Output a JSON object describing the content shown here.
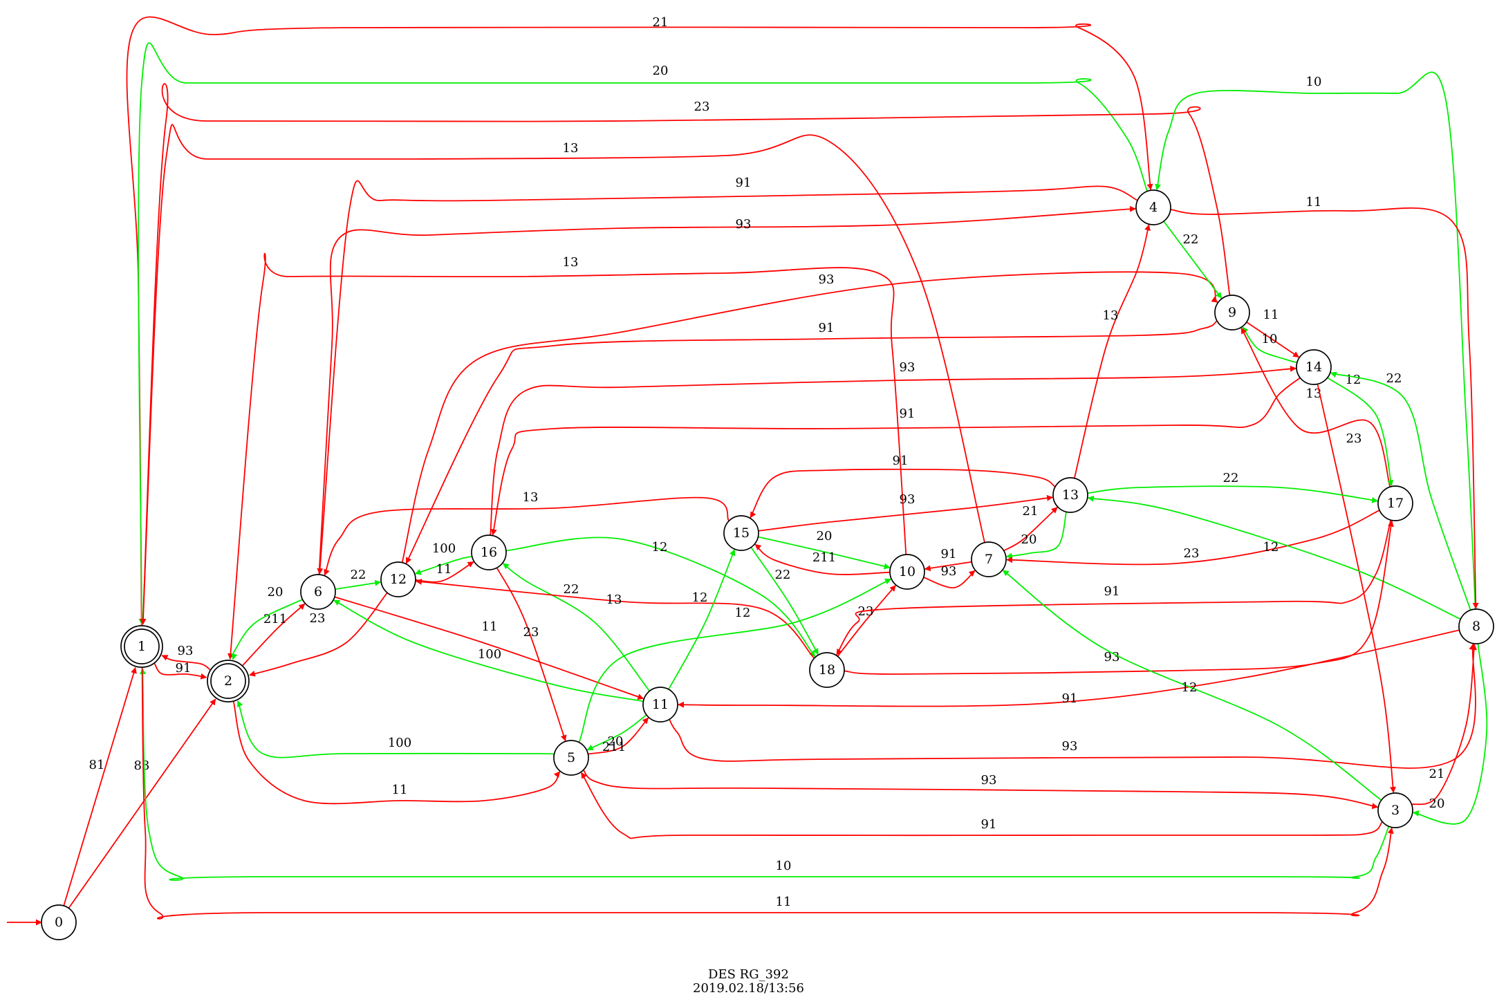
{
  "colors": {
    "red": "#ff0000",
    "green": "#00ee00"
  },
  "caption": {
    "line1": "DES RG_392",
    "line2": "2019.02.18/13:56"
  },
  "diagram": {
    "initial_state": "0",
    "final_states": [
      "1",
      "2"
    ],
    "states": [
      "0",
      "1",
      "2",
      "3",
      "4",
      "5",
      "6",
      "7",
      "8",
      "9",
      "10",
      "11",
      "12",
      "13",
      "14",
      "15",
      "16",
      "17",
      "18"
    ],
    "edges": [
      {
        "from": "0",
        "to": "1",
        "label": "81",
        "color": "red"
      },
      {
        "from": "0",
        "to": "2",
        "label": "83",
        "color": "red"
      },
      {
        "from": "1",
        "to": "2",
        "label": "91",
        "color": "red"
      },
      {
        "from": "2",
        "to": "1",
        "label": "93",
        "color": "red"
      },
      {
        "from": "1",
        "to": "4",
        "label": "21",
        "color": "red"
      },
      {
        "from": "4",
        "to": "1",
        "label": "20",
        "color": "green"
      },
      {
        "from": "9",
        "to": "1",
        "label": "23",
        "color": "red"
      },
      {
        "from": "7",
        "to": "1",
        "label": "13",
        "color": "red"
      },
      {
        "from": "4",
        "to": "6",
        "label": "91",
        "color": "red"
      },
      {
        "from": "6",
        "to": "4",
        "label": "93",
        "color": "red"
      },
      {
        "from": "10",
        "to": "2",
        "label": "13",
        "color": "red"
      },
      {
        "from": "12",
        "to": "9",
        "label": "93",
        "color": "red"
      },
      {
        "from": "9",
        "to": "12",
        "label": "91",
        "color": "red"
      },
      {
        "from": "16",
        "to": "14",
        "label": "93",
        "color": "red"
      },
      {
        "from": "14",
        "to": "16",
        "label": "91",
        "color": "red"
      },
      {
        "from": "8",
        "to": "4",
        "label": "10",
        "color": "green"
      },
      {
        "from": "4",
        "to": "8",
        "label": "11",
        "color": "red"
      },
      {
        "from": "4",
        "to": "9",
        "label": "22",
        "color": "green"
      },
      {
        "from": "9",
        "to": "14",
        "label": "11",
        "color": "red"
      },
      {
        "from": "14",
        "to": "9",
        "label": "10",
        "color": "green"
      },
      {
        "from": "17",
        "to": "9",
        "label": "13",
        "color": "red"
      },
      {
        "from": "14",
        "to": "17",
        "label": "12",
        "color": "green"
      },
      {
        "from": "8",
        "to": "14",
        "label": "22",
        "color": "green"
      },
      {
        "from": "14",
        "to": "3",
        "label": "23",
        "color": "red"
      },
      {
        "from": "13",
        "to": "4",
        "label": "13",
        "color": "red"
      },
      {
        "from": "13",
        "to": "15",
        "label": "91",
        "color": "red"
      },
      {
        "from": "15",
        "to": "13",
        "label": "93",
        "color": "red"
      },
      {
        "from": "13",
        "to": "17",
        "label": "22",
        "color": "green"
      },
      {
        "from": "7",
        "to": "13",
        "label": "21",
        "color": "red"
      },
      {
        "from": "13",
        "to": "7",
        "label": "20",
        "color": "green"
      },
      {
        "from": "17",
        "to": "7",
        "label": "23",
        "color": "red"
      },
      {
        "from": "8",
        "to": "13",
        "label": "12",
        "color": "green"
      },
      {
        "from": "15",
        "to": "6",
        "label": "13",
        "color": "red"
      },
      {
        "from": "15",
        "to": "10",
        "label": "20",
        "color": "green"
      },
      {
        "from": "10",
        "to": "15",
        "label": "211",
        "color": "red"
      },
      {
        "from": "15",
        "to": "18",
        "label": "22",
        "color": "green"
      },
      {
        "from": "7",
        "to": "10",
        "label": "91",
        "color": "red"
      },
      {
        "from": "10",
        "to": "7",
        "label": "93",
        "color": "red"
      },
      {
        "from": "18",
        "to": "10",
        "label": "23",
        "color": "red"
      },
      {
        "from": "17",
        "to": "18",
        "label": "91",
        "color": "red"
      },
      {
        "from": "18",
        "to": "17",
        "label": "93",
        "color": "red"
      },
      {
        "from": "16",
        "to": "12",
        "label": "100",
        "color": "green"
      },
      {
        "from": "12",
        "to": "16",
        "label": "11",
        "color": "red"
      },
      {
        "from": "16",
        "to": "18",
        "label": "12",
        "color": "green"
      },
      {
        "from": "16",
        "to": "5",
        "label": "23",
        "color": "red"
      },
      {
        "from": "11",
        "to": "16",
        "label": "22",
        "color": "green"
      },
      {
        "from": "18",
        "to": "12",
        "label": "13",
        "color": "red"
      },
      {
        "from": "6",
        "to": "12",
        "label": "22",
        "color": "green"
      },
      {
        "from": "2",
        "to": "6",
        "label": "211",
        "color": "red"
      },
      {
        "from": "6",
        "to": "2",
        "label": "20",
        "color": "green"
      },
      {
        "from": "12",
        "to": "2",
        "label": "23",
        "color": "red"
      },
      {
        "from": "6",
        "to": "11",
        "label": "11",
        "color": "red"
      },
      {
        "from": "11",
        "to": "6",
        "label": "100",
        "color": "green"
      },
      {
        "from": "11",
        "to": "15",
        "label": "12",
        "color": "green"
      },
      {
        "from": "5",
        "to": "10",
        "label": "12",
        "color": "green"
      },
      {
        "from": "11",
        "to": "5",
        "label": "20",
        "color": "green"
      },
      {
        "from": "5",
        "to": "11",
        "label": "211",
        "color": "red"
      },
      {
        "from": "5",
        "to": "2",
        "label": "100",
        "color": "green"
      },
      {
        "from": "2",
        "to": "5",
        "label": "11",
        "color": "red"
      },
      {
        "from": "8",
        "to": "11",
        "label": "91",
        "color": "red"
      },
      {
        "from": "11",
        "to": "8",
        "label": "93",
        "color": "red"
      },
      {
        "from": "5",
        "to": "3",
        "label": "93",
        "color": "red"
      },
      {
        "from": "3",
        "to": "5",
        "label": "91",
        "color": "red"
      },
      {
        "from": "3",
        "to": "7",
        "label": "12",
        "color": "green"
      },
      {
        "from": "3",
        "to": "8",
        "label": "21",
        "color": "red"
      },
      {
        "from": "8",
        "to": "3",
        "label": "20",
        "color": "green"
      },
      {
        "from": "3",
        "to": "1",
        "label": "10",
        "color": "green"
      },
      {
        "from": "1",
        "to": "3",
        "label": "11",
        "color": "red"
      }
    ]
  }
}
